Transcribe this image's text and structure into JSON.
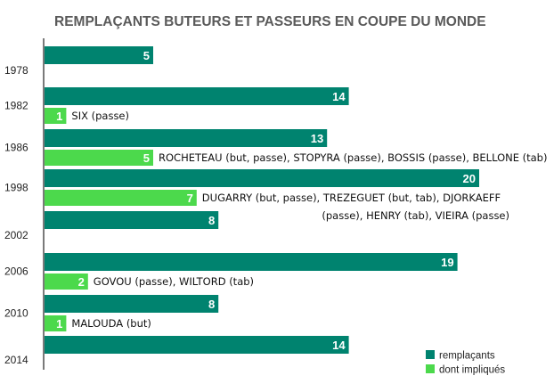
{
  "chart_data": {
    "type": "bar",
    "orientation": "horizontal",
    "title": "REMPLAÇANTS BUTEURS ET PASSEURS EN COUPE DU MONDE",
    "xlim": [
      0,
      20
    ],
    "grid": false,
    "legend_position": "bottom-right",
    "colors": {
      "remplacants": "#00836f",
      "impliques": "#4cd94c",
      "axis": "#222222"
    },
    "series": [
      {
        "key": "remplacants",
        "name": "remplaçants"
      },
      {
        "key": "impliques",
        "name": "dont impliqués"
      }
    ],
    "rows": [
      {
        "year": "1978",
        "remplacants": 5,
        "impliques": null,
        "note": []
      },
      {
        "year": "1982",
        "remplacants": 14,
        "impliques": 1,
        "note": [
          "SIX (passe)"
        ]
      },
      {
        "year": "1986",
        "remplacants": 13,
        "impliques": 5,
        "note": [
          "ROCHETEAU (but, passe), STOPYRA (passe), BOSSIS (passe), BELLONE (tab)"
        ]
      },
      {
        "year": "1998",
        "remplacants": 20,
        "impliques": 7,
        "note": [
          "DUGARRY (but, passe), TREZEGUET (but, tab), DJORKAEFF",
          "(passe), HENRY (tab), VIEIRA (passe)"
        ]
      },
      {
        "year": "2002",
        "remplacants": 8,
        "impliques": null,
        "note": []
      },
      {
        "year": "2006",
        "remplacants": 19,
        "impliques": 2,
        "note": [
          "GOVOU (passe), WILTORD (tab)"
        ]
      },
      {
        "year": "2010",
        "remplacants": 8,
        "impliques": 1,
        "note": [
          "MALOUDA (but)"
        ]
      },
      {
        "year": "2014",
        "remplacants": 14,
        "impliques": null,
        "note": []
      }
    ]
  }
}
